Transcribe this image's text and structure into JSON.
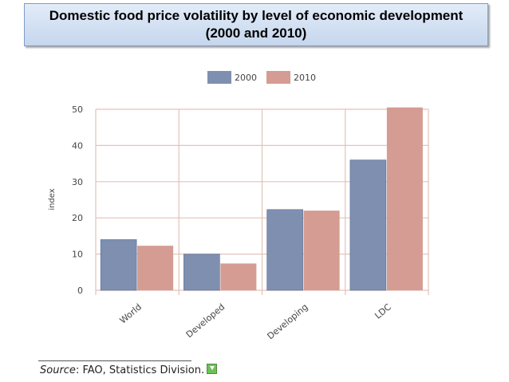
{
  "header": {
    "title_line1": "Domestic food price volatility by level of economic development",
    "title_line2": "(2000 and 2010)"
  },
  "colors": {
    "series_2000": "#7e8fb0",
    "series_2010": "#d49c92",
    "grid": "#e2c2bb",
    "title_bg": "#d3e0f2"
  },
  "chart_data": {
    "type": "bar",
    "categories": [
      "World",
      "Developed",
      "Developing",
      "LDC"
    ],
    "series": [
      {
        "name": "2000",
        "values": [
          14,
          10,
          22.3,
          36
        ]
      },
      {
        "name": "2010",
        "values": [
          12.3,
          7.4,
          22,
          50.5
        ]
      }
    ],
    "ylabel": "index",
    "xlabel": "",
    "ylim": [
      0,
      50
    ],
    "yticks": [
      0,
      10,
      20,
      30,
      40,
      50
    ],
    "grid": true,
    "legend": "top-center"
  },
  "source": {
    "label": "Source",
    "text": ": FAO, Statistics Division."
  }
}
